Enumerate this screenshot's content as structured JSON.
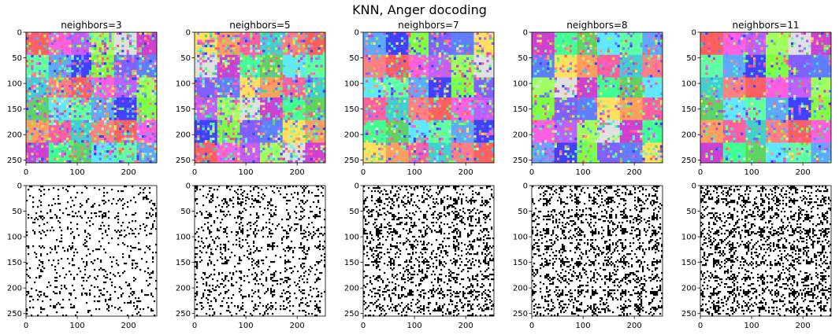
{
  "figure": {
    "title": "KNN, Anger docoding"
  },
  "chart_data": [
    {
      "type": "heatmap",
      "title": "neighbors=3",
      "xticks": [
        0,
        100,
        200
      ],
      "yticks": [
        0,
        50,
        100,
        150,
        200,
        250
      ],
      "xlim": [
        0,
        255
      ],
      "ylim": [
        255,
        0
      ],
      "image_size": [
        256,
        256
      ],
      "grid": false,
      "content": "color-coded crystal map (5x5 checker of colored blocks)"
    },
    {
      "type": "heatmap",
      "title": "neighbors=5",
      "xticks": [
        0,
        100,
        200
      ],
      "yticks": [
        0,
        50,
        100,
        150,
        200,
        250
      ],
      "xlim": [
        0,
        255
      ],
      "ylim": [
        255,
        0
      ],
      "image_size": [
        256,
        256
      ],
      "grid": false,
      "content": "color-coded crystal map"
    },
    {
      "type": "heatmap",
      "title": "neighbors=7",
      "xticks": [
        0,
        100,
        200
      ],
      "yticks": [
        0,
        50,
        100,
        150,
        200,
        250
      ],
      "xlim": [
        0,
        255
      ],
      "ylim": [
        255,
        0
      ],
      "image_size": [
        256,
        256
      ],
      "grid": false,
      "content": "color-coded crystal map"
    },
    {
      "type": "heatmap",
      "title": "neighbors=8",
      "xticks": [
        0,
        100,
        200
      ],
      "yticks": [
        0,
        50,
        100,
        150,
        200,
        250
      ],
      "xlim": [
        0,
        255
      ],
      "ylim": [
        255,
        0
      ],
      "image_size": [
        256,
        256
      ],
      "grid": false,
      "content": "color-coded crystal map"
    },
    {
      "type": "heatmap",
      "title": "neighbors=11",
      "xticks": [
        0,
        100,
        200
      ],
      "yticks": [
        0,
        50,
        100,
        150,
        200,
        250
      ],
      "xlim": [
        0,
        255
      ],
      "ylim": [
        255,
        0
      ],
      "image_size": [
        256,
        256
      ],
      "grid": false,
      "content": "color-coded crystal map"
    },
    {
      "type": "heatmap",
      "title": "",
      "xticks": [
        0,
        100,
        200
      ],
      "yticks": [
        0,
        50,
        100,
        150,
        200,
        250
      ],
      "xlim": [
        0,
        255
      ],
      "ylim": [
        255,
        0
      ],
      "image_size": [
        256,
        256
      ],
      "grid": false,
      "colormap": "binary",
      "content": "black/white segmentation mask, sparse"
    },
    {
      "type": "heatmap",
      "title": "",
      "xticks": [
        0,
        100,
        200
      ],
      "yticks": [
        0,
        50,
        100,
        150,
        200,
        250
      ],
      "xlim": [
        0,
        255
      ],
      "ylim": [
        255,
        0
      ],
      "image_size": [
        256,
        256
      ],
      "grid": false,
      "colormap": "binary",
      "content": "black/white segmentation mask"
    },
    {
      "type": "heatmap",
      "title": "",
      "xticks": [
        0,
        100,
        200
      ],
      "yticks": [
        0,
        50,
        100,
        150,
        200,
        250
      ],
      "xlim": [
        0,
        255
      ],
      "ylim": [
        255,
        0
      ],
      "image_size": [
        256,
        256
      ],
      "grid": false,
      "colormap": "binary",
      "content": "black/white segmentation mask"
    },
    {
      "type": "heatmap",
      "title": "",
      "xticks": [
        0,
        100,
        200
      ],
      "yticks": [
        0,
        50,
        100,
        150,
        200,
        250
      ],
      "xlim": [
        0,
        255
      ],
      "ylim": [
        255,
        0
      ],
      "image_size": [
        256,
        256
      ],
      "grid": false,
      "colormap": "binary",
      "content": "black/white segmentation mask"
    },
    {
      "type": "heatmap",
      "title": "",
      "xticks": [
        0,
        100,
        200
      ],
      "yticks": [
        0,
        50,
        100,
        150,
        200,
        250
      ],
      "xlim": [
        0,
        255
      ],
      "ylim": [
        255,
        0
      ],
      "image_size": [
        256,
        256
      ],
      "grid": false,
      "colormap": "binary",
      "content": "black/white segmentation mask, dense"
    }
  ]
}
